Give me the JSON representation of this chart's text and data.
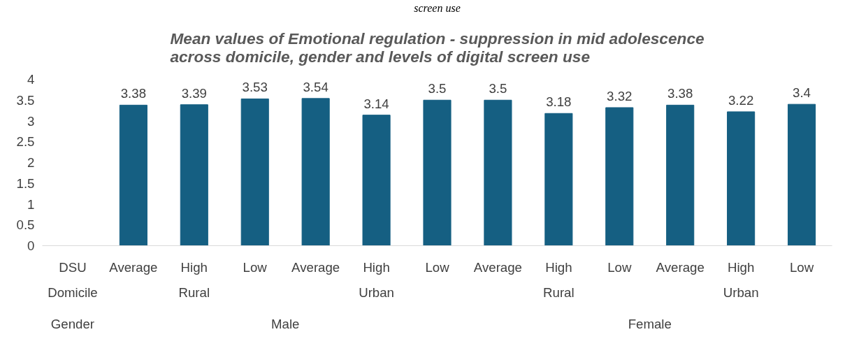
{
  "chart_data": {
    "type": "bar",
    "title": "Mean values of Emotional regulation - suppression in mid adolescence across domicile, gender and levels of digital screen use",
    "annotations": [
      "screen use",
      "Domicile",
      "Rural",
      "Urban",
      "Rural",
      "Urban",
      "Gender",
      "Male",
      "Female"
    ],
    "categories": [
      "DSU",
      "Average",
      "High",
      "Low",
      "Average",
      "High",
      "Low",
      "Average",
      "High",
      "Low",
      "Average",
      "High",
      "Low"
    ],
    "values": [
      null,
      3.38,
      3.39,
      3.53,
      3.54,
      3.14,
      3.5,
      3.5,
      3.18,
      3.32,
      3.38,
      3.22,
      3.4
    ],
    "color": "#155f82",
    "ylim": [
      0,
      4
    ],
    "yticks": [
      0,
      0.5,
      1,
      1.5,
      2,
      2.5,
      3,
      3.5,
      4
    ],
    "grid": false,
    "data_labels": true
  }
}
